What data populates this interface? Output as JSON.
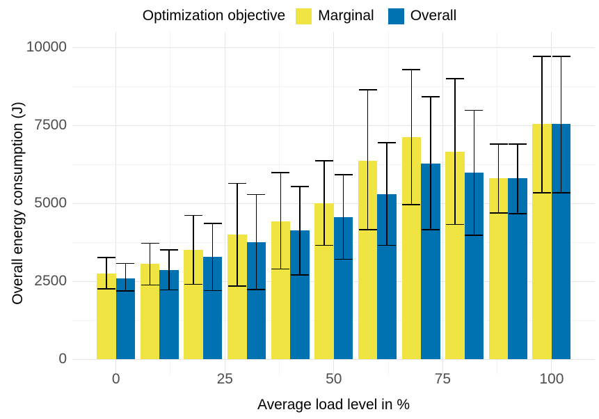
{
  "legend": {
    "title": "Optimization objective",
    "items": [
      {
        "label": "Marginal",
        "color": "#F0E442"
      },
      {
        "label": "Overall",
        "color": "#0072B2"
      }
    ]
  },
  "axes": {
    "y_title": "Overall energy consumption (J)",
    "x_title": "Average load level in %"
  },
  "chart_data": {
    "type": "bar",
    "title": "",
    "xlabel": "Average load level in %",
    "ylabel": "Overall energy consumption (J)",
    "x": [
      0,
      10,
      20,
      30,
      40,
      50,
      60,
      70,
      80,
      90,
      100
    ],
    "series": [
      {
        "name": "Marginal",
        "color": "#F0E442",
        "values": [
          2750,
          3050,
          3500,
          4000,
          4430,
          5010,
          6360,
          7120,
          6660,
          5800,
          7550
        ],
        "error_low": [
          2250,
          2380,
          2400,
          2340,
          2890,
          3650,
          4150,
          4950,
          4320,
          4690,
          5340
        ],
        "error_high": [
          3260,
          3720,
          4610,
          5640,
          5980,
          6360,
          8640,
          9290,
          8990,
          6900,
          9710
        ]
      },
      {
        "name": "Overall",
        "color": "#0072B2",
        "values": [
          2600,
          2860,
          3290,
          3760,
          4130,
          4560,
          5280,
          6270,
          5990,
          5800,
          7550
        ],
        "error_low": [
          2190,
          2220,
          2200,
          2230,
          2700,
          3200,
          3650,
          4150,
          3970,
          4670,
          5340
        ],
        "error_high": [
          3070,
          3500,
          4350,
          5280,
          5540,
          5910,
          6940,
          8410,
          7980,
          6900,
          9710
        ]
      }
    ],
    "x_ticks": [
      0,
      25,
      50,
      75,
      100
    ],
    "y_ticks": [
      0,
      2500,
      5000,
      7500,
      10000
    ],
    "x_minor_ticks": [
      12.5,
      37.5,
      62.5,
      87.5
    ],
    "y_minor_ticks": [
      1250,
      3750,
      6250,
      8750
    ],
    "ylim": [
      0,
      10000
    ],
    "grid": "major+minor",
    "legend_position": "top",
    "error_bar_color": "#000000"
  }
}
